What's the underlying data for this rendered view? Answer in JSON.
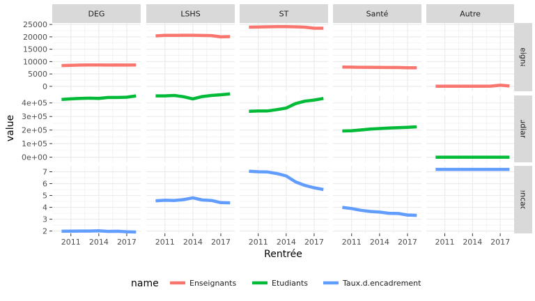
{
  "chart_data": {
    "type": "line",
    "facet_cols": [
      "DEG",
      "LSHS",
      "ST",
      "Santé",
      "Autre"
    ],
    "facet_rows": [
      "Enseignants",
      "Etudiants",
      "Taux.d.encadrement"
    ],
    "xlabel": "Rentrée",
    "ylabel": "value",
    "x_ticks": [
      2011,
      2014,
      2017
    ],
    "xlim": [
      2009,
      2018.5
    ],
    "row_scales": {
      "Enseignants": {
        "ylim": [
          -2000,
          25600
        ],
        "ticks": [
          0,
          5000,
          10000,
          15000,
          20000,
          25000
        ],
        "tick_labels": [
          "0",
          "5000",
          "10000",
          "15000",
          "20000",
          "25000"
        ]
      },
      "Etudiants": {
        "ylim": [
          -38000,
          455000
        ],
        "ticks": [
          0,
          100000,
          200000,
          300000,
          400000
        ],
        "tick_labels": [
          "0e+00",
          "1e+05",
          "2e+05",
          "3e+05",
          "4e+05"
        ]
      },
      "Taux.d.encadrement": {
        "ylim": [
          1.8,
          7.5
        ],
        "ticks": [
          2,
          3,
          4,
          5,
          6,
          7
        ],
        "tick_labels": [
          "2",
          "3",
          "4",
          "5",
          "6",
          "7"
        ]
      }
    },
    "x": [
      2010,
      2011,
      2012,
      2013,
      2014,
      2015,
      2016,
      2017,
      2018
    ],
    "series_colors": {
      "Enseignants": "#F8766D",
      "Etudiants": "#00BA38",
      "Taux.d.encadrement": "#619CFF"
    },
    "legend": {
      "title": "name",
      "position": "bottom",
      "entries": [
        "Enseignants",
        "Etudiants",
        "Taux.d.encadrement"
      ]
    },
    "series": [
      {
        "facet": "DEG",
        "name": "Enseignants",
        "values": [
          8400,
          8500,
          8600,
          8650,
          8650,
          8600,
          8650,
          8600,
          8650
        ]
      },
      {
        "facet": "DEG",
        "name": "Etudiants",
        "values": [
          425000,
          430000,
          433000,
          435000,
          433000,
          440000,
          440000,
          442000,
          452000
        ]
      },
      {
        "facet": "DEG",
        "name": "Taux.d.encadrement",
        "values": [
          1.98,
          1.99,
          2.0,
          2.0,
          2.02,
          1.97,
          1.98,
          1.94,
          1.92
        ]
      },
      {
        "facet": "LSHS",
        "name": "Enseignants",
        "values": [
          20400,
          20600,
          20600,
          20650,
          20650,
          20550,
          20500,
          20000,
          20100
        ]
      },
      {
        "facet": "LSHS",
        "name": "Etudiants",
        "values": [
          452000,
          452000,
          455000,
          446000,
          430000,
          447000,
          455000,
          460000,
          467000
        ]
      },
      {
        "facet": "LSHS",
        "name": "Taux.d.encadrement",
        "values": [
          4.55,
          4.6,
          4.58,
          4.65,
          4.8,
          4.62,
          4.58,
          4.4,
          4.38
        ]
      },
      {
        "facet": "ST",
        "name": "Enseignants",
        "values": [
          23900,
          24000,
          24050,
          24100,
          24100,
          24050,
          23900,
          23500,
          23500
        ]
      },
      {
        "facet": "ST",
        "name": "Etudiants",
        "values": [
          338000,
          341000,
          341000,
          351000,
          362000,
          395000,
          413000,
          421000,
          433000
        ]
      },
      {
        "facet": "ST",
        "name": "Taux.d.encadrement",
        "values": [
          7.05,
          7.0,
          6.98,
          6.85,
          6.65,
          6.15,
          5.85,
          5.65,
          5.5
        ]
      },
      {
        "facet": "Santé",
        "name": "Enseignants",
        "values": [
          7800,
          7750,
          7700,
          7700,
          7650,
          7600,
          7600,
          7500,
          7500
        ]
      },
      {
        "facet": "Santé",
        "name": "Etudiants",
        "values": [
          193000,
          195000,
          201000,
          207000,
          211000,
          215000,
          217000,
          220000,
          224000
        ]
      },
      {
        "facet": "Santé",
        "name": "Taux.d.encadrement",
        "values": [
          4.0,
          3.9,
          3.75,
          3.65,
          3.6,
          3.5,
          3.48,
          3.35,
          3.32
        ]
      },
      {
        "facet": "Autre",
        "name": "Enseignants",
        "values": [
          50,
          60,
          60,
          60,
          70,
          70,
          80,
          450,
          150
        ]
      },
      {
        "facet": "Autre",
        "name": "Etudiants",
        "values": [
          0,
          0,
          0,
          0,
          0,
          0,
          0,
          0,
          0
        ]
      },
      {
        "facet": "Autre",
        "name": "Taux.d.encadrement",
        "values": [
          7.2,
          7.2,
          7.2,
          7.2,
          7.2,
          7.2,
          7.2,
          7.2,
          7.2
        ]
      }
    ]
  }
}
